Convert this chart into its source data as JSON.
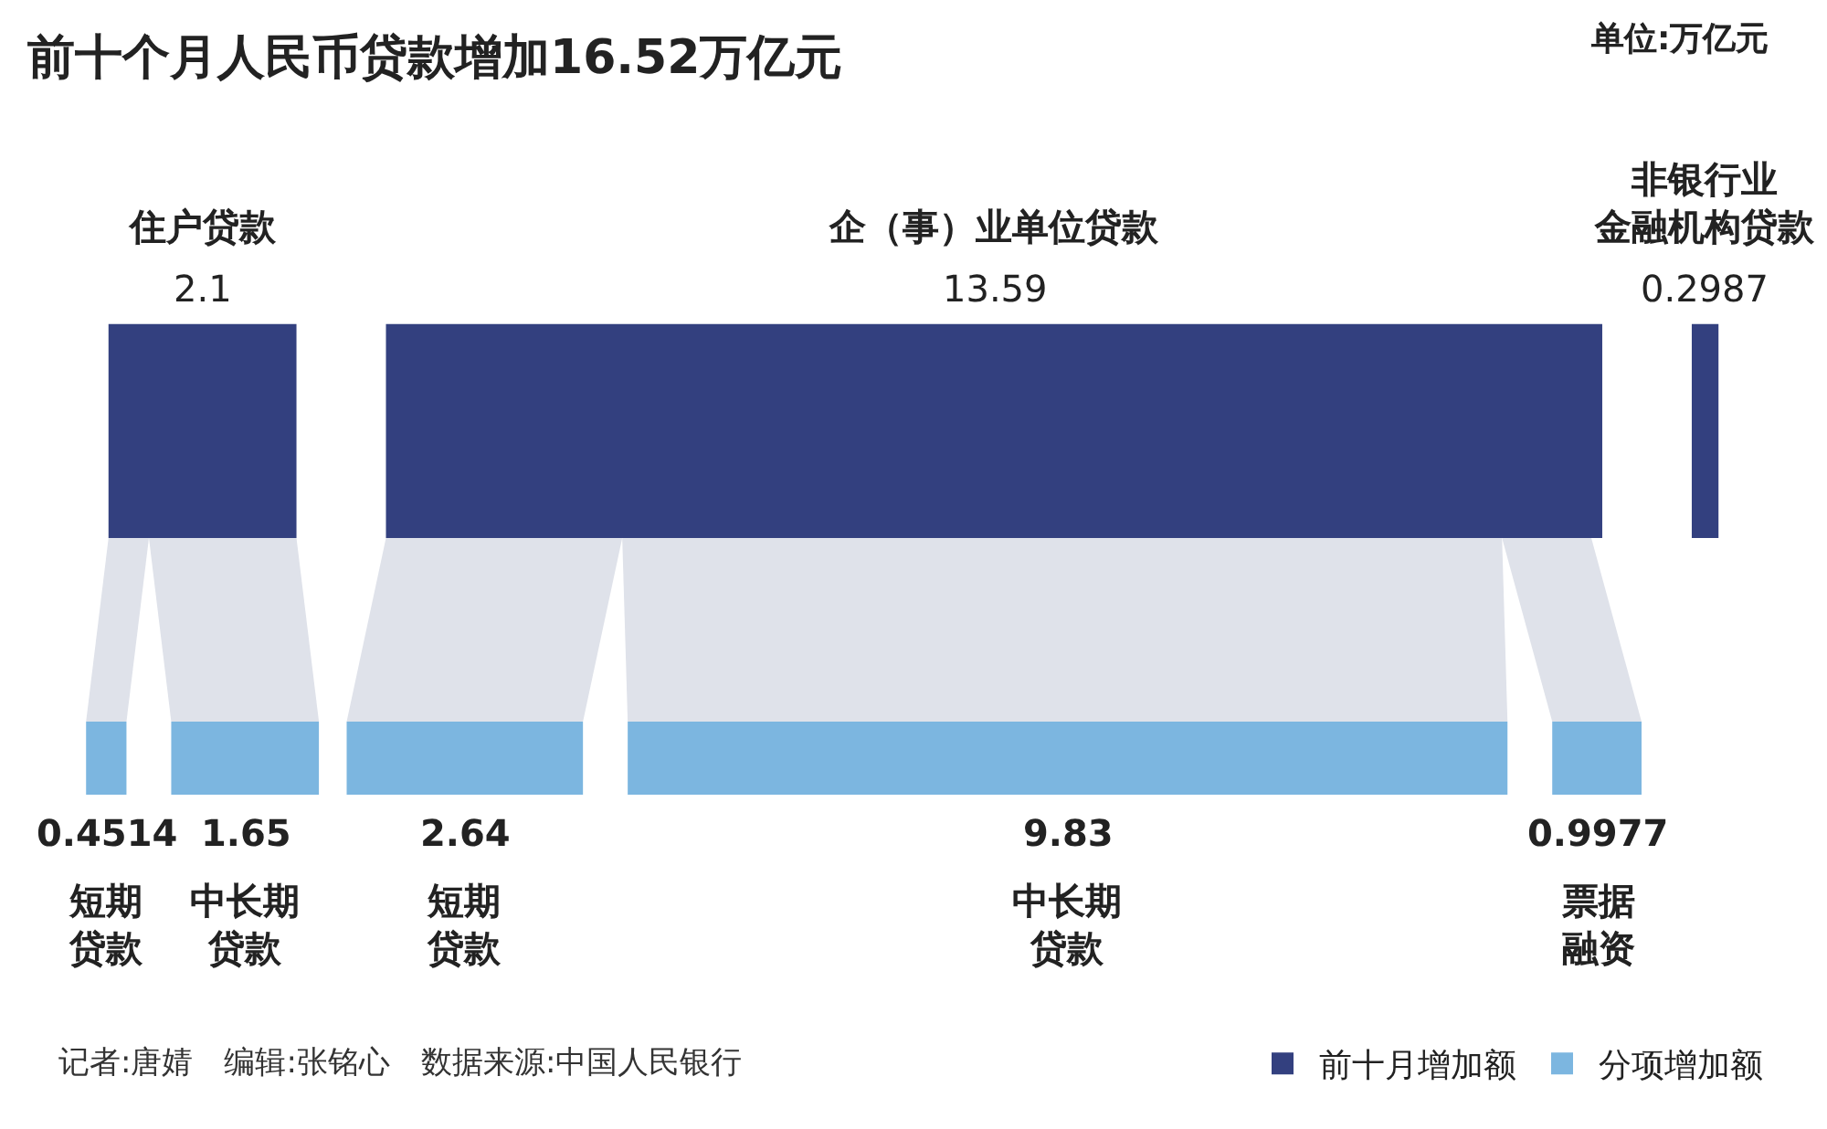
{
  "chart_data": {
    "type": "other",
    "title": "前十个月人民币贷款增加16.52万亿元",
    "subtitle": "单位:万亿元",
    "categories": [
      "住户贷款",
      "企（事）业单位贷款",
      "非银行业金融机构贷款",
      "短期贷款",
      "中长期贷款",
      "短期贷款",
      "中长期贷款",
      "票据融资"
    ],
    "series": [
      {
        "name": "前十月增加额",
        "color": "#33407f",
        "values": [
          2.1,
          13.59,
          0.2987,
          null,
          null,
          null,
          null,
          null
        ]
      },
      {
        "name": "分项增加额",
        "color": "#7cb6e0",
        "values": [
          null,
          null,
          null,
          0.4514,
          1.65,
          2.64,
          9.83,
          0.9977
        ]
      }
    ],
    "annotations": [
      "记者:唐婧　编辑:张铭心　数据来源:中国人民银行"
    ],
    "data_labels": true,
    "legend": "bottom right"
  }
}
